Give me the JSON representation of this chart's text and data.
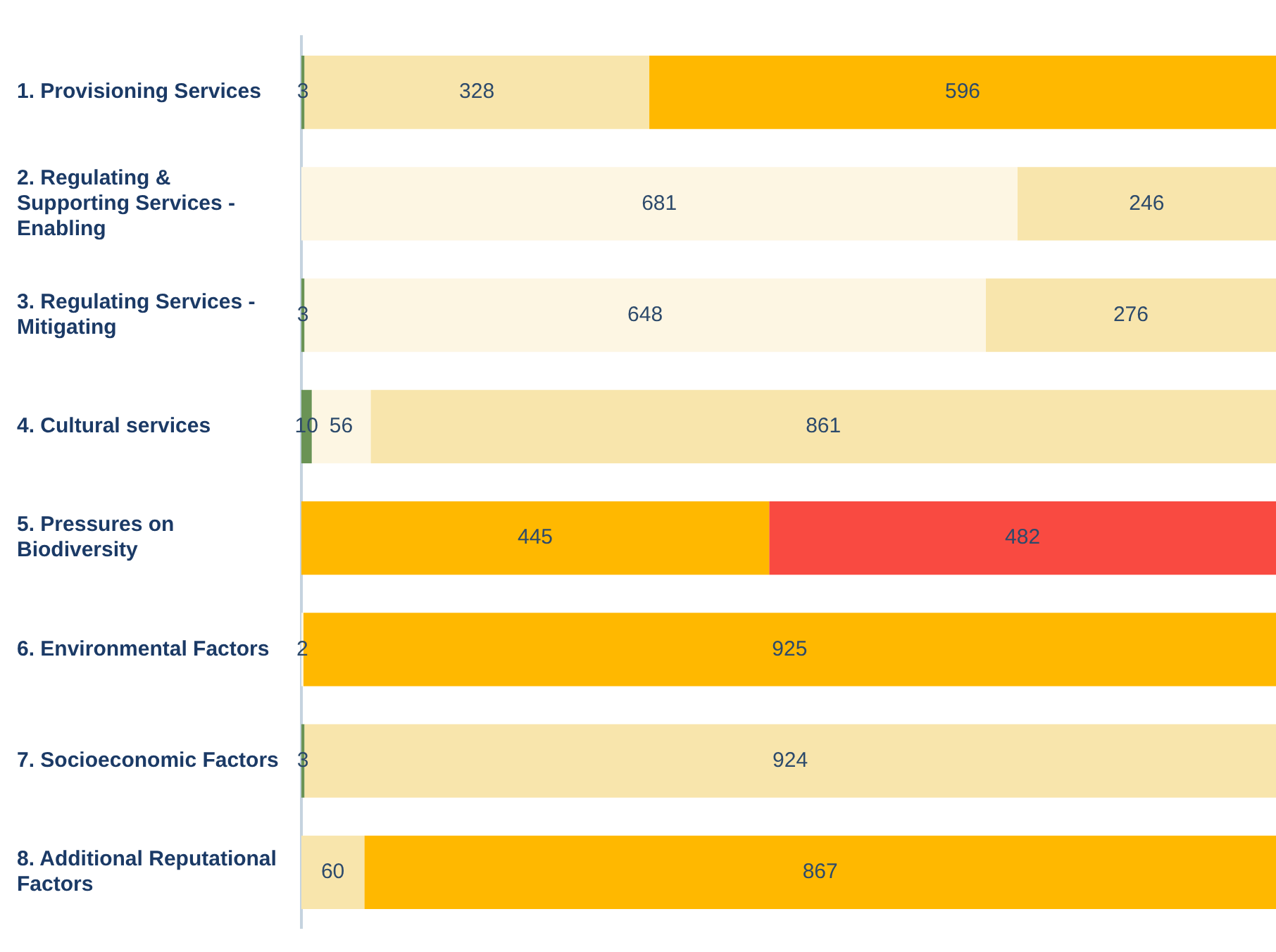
{
  "chart_data": {
    "type": "bar",
    "orientation": "horizontal",
    "stacked": true,
    "data_labels": true,
    "legend": false,
    "grid": false,
    "tick_labels": "y",
    "xlim": [
      0,
      927
    ],
    "categories": [
      "1. Provisioning Services",
      "2. Regulating & Supporting Services - Enabling",
      "3. Regulating Services - Mitigating",
      "4. Cultural services",
      "5. Pressures on Biodiversity",
      "6. Environmental Factors",
      "7. Socioeconomic Factors",
      "8. Additional Reputational Factors"
    ],
    "series": [
      {
        "color": "#6a9355",
        "values": [
          3,
          null,
          3,
          10,
          null,
          null,
          3,
          null
        ]
      },
      {
        "color": "#fdf6e3",
        "values": [
          null,
          681,
          648,
          56,
          null,
          2,
          null,
          null
        ]
      },
      {
        "color": "#f8e5ac",
        "values": [
          328,
          246,
          276,
          861,
          null,
          null,
          924,
          60
        ]
      },
      {
        "color": "#ffb800",
        "values": [
          596,
          null,
          null,
          null,
          445,
          925,
          null,
          867
        ]
      },
      {
        "color": "#f94a41",
        "values": [
          null,
          null,
          null,
          null,
          482,
          null,
          null,
          null
        ]
      }
    ]
  }
}
